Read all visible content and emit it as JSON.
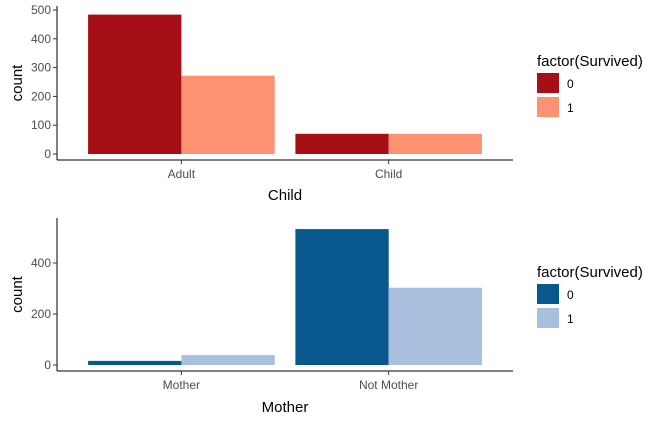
{
  "chart_data": [
    {
      "type": "bar",
      "position": "dodge",
      "categories": [
        "Adult",
        "Child"
      ],
      "xlabel": "Child",
      "ylabel": "count",
      "ylim": [
        0,
        500
      ],
      "yticks": [
        0,
        100,
        200,
        300,
        400,
        500
      ],
      "grid": false,
      "legend": {
        "title": "factor(Survived)",
        "placement": "right",
        "entries": [
          "0",
          "1"
        ]
      },
      "series": [
        {
          "name": "0",
          "color": "#A50F15",
          "values": [
            484,
            70
          ]
        },
        {
          "name": "1",
          "color": "#FC9272",
          "values": [
            272,
            70
          ]
        }
      ]
    },
    {
      "type": "bar",
      "position": "dodge",
      "categories": [
        "Mother",
        "Not Mother"
      ],
      "xlabel": "Mother",
      "ylabel": "count",
      "ylim": [
        0,
        549
      ],
      "yticks": [
        0,
        200,
        400
      ],
      "grid": false,
      "legend": {
        "title": "factor(Survived)",
        "placement": "right",
        "entries": [
          "0",
          "1"
        ]
      },
      "series": [
        {
          "name": "0",
          "color": "#08588E",
          "values": [
            16,
            533
          ]
        },
        {
          "name": "1",
          "color": "#A9BFDE",
          "values": [
            39,
            303
          ]
        }
      ]
    }
  ]
}
